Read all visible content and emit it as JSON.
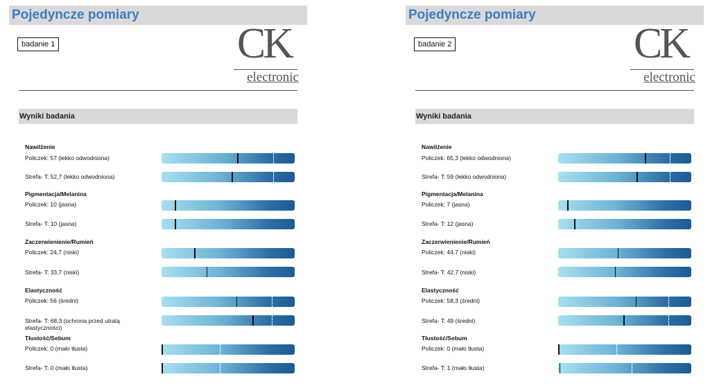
{
  "panels": [
    {
      "title": "Pojedyncze pomiary",
      "sample": "badanie 1",
      "logo": {
        "main": "CK",
        "sub": "electronic"
      },
      "section": "Wyniki badania",
      "groups": [
        {
          "title": "Nawilżenie",
          "rows": [
            {
              "label": "Policzek: 57 (lekko odwodniona)",
              "value": 57,
              "tick": 84
            },
            {
              "label": "Strefa- T: 52,7 (lekko odwodniona)",
              "value": 52.7,
              "tick": 84
            }
          ]
        },
        {
          "title": "Pigmentacja/Melanina",
          "rows": [
            {
              "label": "Policzek: 10 (jasna)",
              "value": 10,
              "tick": null
            },
            {
              "label": "Strefa- T: 10 (jasna)",
              "value": 10,
              "tick": null
            }
          ]
        },
        {
          "title": "Zaczerwienienie/Rumień",
          "rows": [
            {
              "label": "Policzek: 24,7 (niski)",
              "value": 24.7,
              "tick": null
            },
            {
              "label": "Strefa- T: 33,7 (niski)",
              "value": 33.7,
              "tick": null
            }
          ]
        },
        {
          "title": "Elastyczność",
          "rows": [
            {
              "label": "Policzek: 56 (średni)",
              "value": 56,
              "tick": 83
            },
            {
              "label": "Strefa- T: 68,3 (ochrona przed utratą elastyczności)",
              "value": 68.3,
              "tick": 83
            }
          ]
        },
        {
          "title": "Tłustość/Sebum",
          "rows": [
            {
              "label": "Policzek: 0 (mało tłusta)",
              "value": 0,
              "tick": 44
            },
            {
              "label": "Strefa- T: 0 (mało tłusta)",
              "value": 0,
              "tick": 44
            }
          ]
        }
      ]
    },
    {
      "title": "Pojedyncze pomiary",
      "sample": "badanie 2",
      "logo": {
        "main": "CK",
        "sub": "electronic"
      },
      "section": "Wyniki badania",
      "groups": [
        {
          "title": "Nawilżenie",
          "rows": [
            {
              "label": "Policzek: 65,3 (lekko odwodniona)",
              "value": 65.3,
              "tick": 84
            },
            {
              "label": "Strefa- T: 59 (lekko odwodniona)",
              "value": 59,
              "tick": 84
            }
          ]
        },
        {
          "title": "Pigmentacja/Melanina",
          "rows": [
            {
              "label": "Policzek: 7 (jasna)",
              "value": 7,
              "tick": null
            },
            {
              "label": "Strefa- T: 12 (jasna)",
              "value": 12,
              "tick": null
            }
          ]
        },
        {
          "title": "Zaczerwienienie/Rumień",
          "rows": [
            {
              "label": "Policzek: 44,7 (niski)",
              "value": 44.7,
              "tick": null
            },
            {
              "label": "Strefa- T: 42,7 (niski)",
              "value": 42.7,
              "tick": null
            }
          ]
        },
        {
          "title": "Elastyczność",
          "rows": [
            {
              "label": "Policzek: 58,3 (średni)",
              "value": 58.3,
              "tick": 83
            },
            {
              "label": "Strefa- T: 49 (średni)",
              "value": 49,
              "tick": 83
            }
          ]
        },
        {
          "title": "Tłustość/Sebum",
          "rows": [
            {
              "label": "Policzek: 0 (mało tłusta)",
              "value": 0,
              "tick": 44
            },
            {
              "label": "Strefa- T: 1 (mało tłusta)",
              "value": 1,
              "tick": 55
            }
          ]
        }
      ]
    }
  ]
}
